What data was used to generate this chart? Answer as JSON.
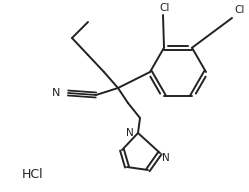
{
  "bg_color": "#ffffff",
  "line_color": "#222222",
  "line_width": 1.4,
  "text_color": "#222222",
  "hcl_text": "HCl",
  "cl_label1": "Cl",
  "cl_label2": "Cl",
  "cn_label": "N",
  "imidazole_n1_label": "N",
  "imidazole_n3_label": "N"
}
